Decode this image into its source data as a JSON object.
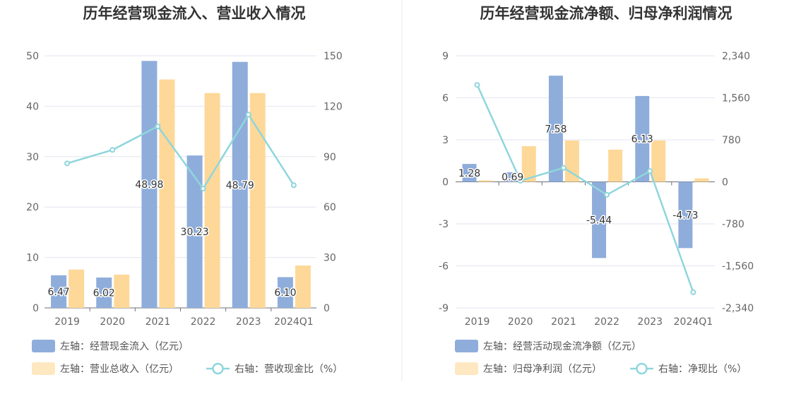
{
  "chart_data": [
    {
      "type": "bar",
      "title": "历年经营现金流入、营业收入情况",
      "categories": [
        "2019",
        "2020",
        "2021",
        "2022",
        "2023",
        "2024Q1"
      ],
      "y_left": {
        "range": [
          0,
          50
        ],
        "ticks": [
          "0",
          "10",
          "20",
          "30",
          "40",
          "50"
        ]
      },
      "y_right": {
        "range": [
          0,
          150
        ],
        "ticks": [
          "0",
          "30",
          "60",
          "90",
          "120",
          "150"
        ]
      },
      "series": [
        {
          "name": "左轴：经营现金流入（亿元）",
          "kind": "bar",
          "axis": "left",
          "color": "#8eaddb",
          "values": [
            6.47,
            6.02,
            48.98,
            30.23,
            48.79,
            6.1
          ],
          "labels": [
            "6.47",
            "6.02",
            "48.98",
            "30.23",
            "48.79",
            "6.10"
          ]
        },
        {
          "name": "左轴：营业总收入（亿元）",
          "kind": "bar",
          "axis": "left",
          "color": "#fed898",
          "values": [
            7.6,
            6.6,
            45.3,
            42.6,
            42.6,
            8.4
          ]
        },
        {
          "name": "右轴：营收现金比（%）",
          "kind": "line",
          "axis": "right",
          "color": "#8fd6dc",
          "values": [
            86,
            94,
            108,
            71,
            115,
            73
          ]
        }
      ],
      "grid": true,
      "legend": "bottom"
    },
    {
      "type": "bar",
      "title": "历年经营现金流净额、归母净利润情况",
      "categories": [
        "2019",
        "2020",
        "2021",
        "2022",
        "2023",
        "2024Q1"
      ],
      "y_left": {
        "range": [
          -9,
          9
        ],
        "ticks": [
          "-9",
          "-6",
          "-3",
          "0",
          "3",
          "6",
          "9"
        ]
      },
      "y_right": {
        "range": [
          -2340,
          2340
        ],
        "ticks": [
          "-2,340",
          "-1,560",
          "-780",
          "0",
          "780",
          "1,560",
          "2,340"
        ]
      },
      "series": [
        {
          "name": "左轴：经营活动现金流净额（亿元）",
          "kind": "bar",
          "axis": "left",
          "color": "#8eaddb",
          "values": [
            1.28,
            0.69,
            7.58,
            -5.44,
            6.13,
            -4.73
          ],
          "labels": [
            "1.28",
            "0.69",
            "7.58",
            "-5.44",
            "6.13",
            "-4.73"
          ]
        },
        {
          "name": "左轴：归母净利润（亿元）",
          "kind": "bar",
          "axis": "left",
          "color": "#fed898",
          "values": [
            0.1,
            2.55,
            2.95,
            2.3,
            2.95,
            0.25
          ]
        },
        {
          "name": "右轴：净现比（%）",
          "kind": "line",
          "axis": "right",
          "color": "#8fd6dc",
          "values": [
            1800,
            20,
            260,
            -240,
            200,
            -2050
          ]
        }
      ],
      "grid": true,
      "legend": "bottom"
    }
  ]
}
